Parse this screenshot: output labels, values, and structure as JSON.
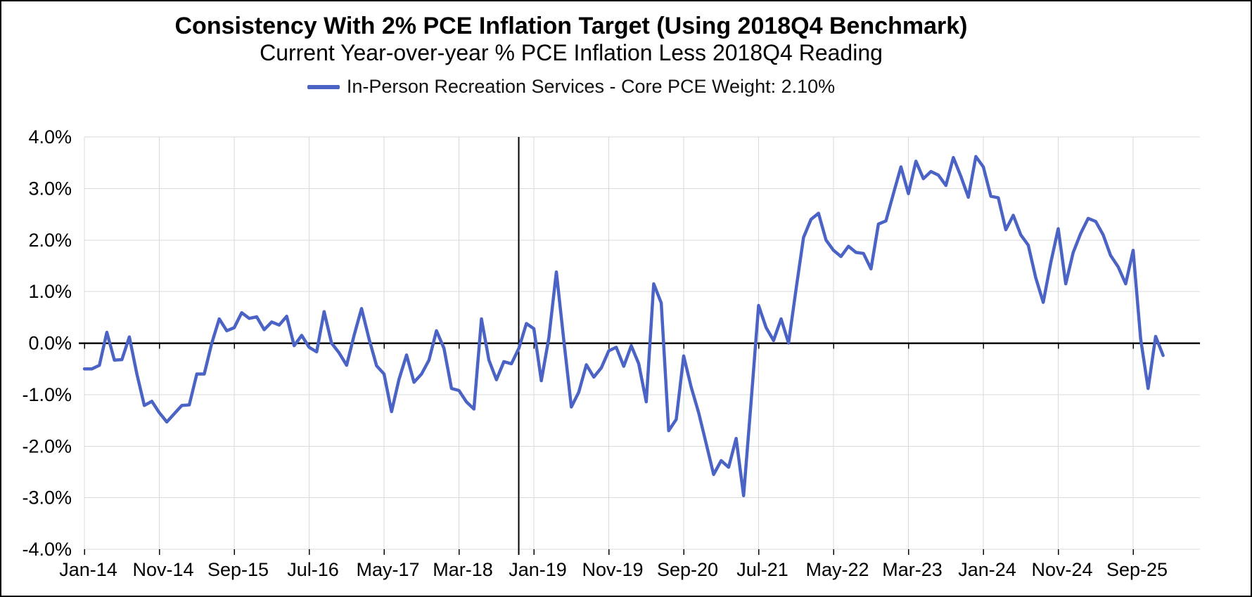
{
  "title": "Consistency With 2% PCE Inflation Target (Using 2018Q4 Benchmark)",
  "subtitle": "Current Year-over-year % PCE Inflation Less 2018Q4 Reading",
  "legend": {
    "label": "In-Person Recreation Services - Core PCE Weight: 2.10%",
    "line_color": "#4A63C4"
  },
  "chart_data": {
    "type": "line",
    "title": "Consistency With 2% PCE Inflation Target (Using 2018Q4 Benchmark)",
    "subtitle": "Current Year-over-year % PCE Inflation Less 2018Q4 Reading",
    "series_name": "In-Person Recreation Services - Core PCE Weight: 2.10%",
    "line_color": "#4A63C4",
    "grid": true,
    "legend_position": "top",
    "ylim": [
      -4.0,
      4.0
    ],
    "ytick_labels": [
      "4.0%",
      "3.0%",
      "2.0%",
      "1.0%",
      "0.0%",
      "-1.0%",
      "-2.0%",
      "-3.0%",
      "-4.0%"
    ],
    "ytick_values": [
      4.0,
      3.0,
      2.0,
      1.0,
      0.0,
      -1.0,
      -2.0,
      -3.0,
      -4.0
    ],
    "xtick_labels": [
      "Jan-14",
      "Nov-14",
      "Sep-15",
      "Jul-16",
      "May-17",
      "Mar-18",
      "Jan-19",
      "Nov-19",
      "Sep-20",
      "Jul-21",
      "May-22",
      "Mar-23",
      "Jan-24",
      "Nov-24",
      "Sep-25"
    ],
    "xtick_interval_months": 10,
    "benchmark_line": {
      "label": "2018Q4 benchmark",
      "month": "Nov-18",
      "index": 58,
      "color": "#000000"
    },
    "x": [
      "Jan-14",
      "Feb-14",
      "Mar-14",
      "Apr-14",
      "May-14",
      "Jun-14",
      "Jul-14",
      "Aug-14",
      "Sep-14",
      "Oct-14",
      "Nov-14",
      "Dec-14",
      "Jan-15",
      "Feb-15",
      "Mar-15",
      "Apr-15",
      "May-15",
      "Jun-15",
      "Jul-15",
      "Aug-15",
      "Sep-15",
      "Oct-15",
      "Nov-15",
      "Dec-15",
      "Jan-16",
      "Feb-16",
      "Mar-16",
      "Apr-16",
      "May-16",
      "Jun-16",
      "Jul-16",
      "Aug-16",
      "Sep-16",
      "Oct-16",
      "Nov-16",
      "Dec-16",
      "Jan-17",
      "Feb-17",
      "Mar-17",
      "Apr-17",
      "May-17",
      "Jun-17",
      "Jul-17",
      "Aug-17",
      "Sep-17",
      "Oct-17",
      "Nov-17",
      "Dec-17",
      "Jan-18",
      "Feb-18",
      "Mar-18",
      "Apr-18",
      "May-18",
      "Jun-18",
      "Jul-18",
      "Aug-18",
      "Sep-18",
      "Oct-18",
      "Nov-18",
      "Dec-18",
      "Jan-19",
      "Feb-19",
      "Mar-19",
      "Apr-19",
      "May-19",
      "Jun-19",
      "Jul-19",
      "Aug-19",
      "Sep-19",
      "Oct-19",
      "Nov-19",
      "Dec-19",
      "Jan-20",
      "Feb-20",
      "Mar-20",
      "Apr-20",
      "May-20",
      "Jun-20",
      "Jul-20",
      "Aug-20",
      "Sep-20",
      "Oct-20",
      "Nov-20",
      "Dec-20",
      "Jan-21",
      "Feb-21",
      "Mar-21",
      "Apr-21",
      "May-21",
      "Jun-21",
      "Jul-21",
      "Aug-21",
      "Sep-21",
      "Oct-21",
      "Nov-21",
      "Dec-21",
      "Jan-22",
      "Feb-22",
      "Mar-22",
      "Apr-22",
      "May-22",
      "Jun-22",
      "Jul-22",
      "Aug-22",
      "Sep-22",
      "Oct-22",
      "Nov-22",
      "Dec-22",
      "Jan-23",
      "Feb-23",
      "Mar-23",
      "Apr-23",
      "May-23",
      "Jun-23",
      "Jul-23",
      "Aug-23",
      "Sep-23",
      "Oct-23",
      "Nov-23",
      "Dec-23",
      "Jan-24",
      "Feb-24",
      "Mar-24",
      "Apr-24",
      "May-24",
      "Jun-24",
      "Jul-24",
      "Aug-24",
      "Sep-24",
      "Oct-24",
      "Nov-24",
      "Dec-24",
      "Jan-25",
      "Feb-25",
      "Mar-25",
      "Apr-25",
      "May-25",
      "Jun-25",
      "Jul-25",
      "Aug-25",
      "Sep-25",
      "Oct-25",
      "Nov-25",
      "Dec-25",
      "Jan-26"
    ],
    "values": [
      -0.5,
      -0.5,
      -0.43,
      0.21,
      -0.33,
      -0.32,
      0.12,
      -0.6,
      -1.21,
      -1.13,
      -1.35,
      -1.53,
      -1.37,
      -1.21,
      -1.2,
      -0.6,
      -0.6,
      0.0,
      0.47,
      0.24,
      0.3,
      0.59,
      0.48,
      0.51,
      0.26,
      0.41,
      0.35,
      0.52,
      -0.05,
      0.15,
      -0.08,
      -0.17,
      0.61,
      0.0,
      -0.19,
      -0.43,
      0.15,
      0.67,
      0.08,
      -0.44,
      -0.6,
      -1.33,
      -0.7,
      -0.23,
      -0.76,
      -0.6,
      -0.33,
      0.24,
      -0.1,
      -0.88,
      -0.92,
      -1.14,
      -1.28,
      0.47,
      -0.33,
      -0.71,
      -0.36,
      -0.4,
      -0.1,
      0.38,
      0.28,
      -0.73,
      0.1,
      1.38,
      0.05,
      -1.24,
      -0.95,
      -0.42,
      -0.66,
      -0.48,
      -0.15,
      -0.08,
      -0.45,
      -0.05,
      -0.4,
      -1.14,
      1.15,
      0.78,
      -1.7,
      -1.48,
      -0.25,
      -0.85,
      -1.35,
      -1.95,
      -2.55,
      -2.28,
      -2.41,
      -1.85,
      -2.96,
      -1.15,
      0.73,
      0.3,
      0.05,
      0.47,
      0.0,
      1.05,
      2.05,
      2.4,
      2.52,
      2.0,
      1.8,
      1.68,
      1.88,
      1.76,
      1.74,
      1.44,
      2.31,
      2.37,
      2.9,
      3.42,
      2.9,
      3.53,
      3.19,
      3.33,
      3.26,
      3.06,
      3.6,
      3.24,
      2.83,
      3.62,
      3.42,
      2.85,
      2.82,
      2.2,
      2.48,
      2.1,
      1.9,
      1.27,
      0.79,
      1.56,
      2.22,
      1.15,
      1.76,
      2.13,
      2.42,
      2.36,
      2.1,
      1.7,
      1.48,
      1.15,
      1.8,
      0.08,
      -0.88,
      0.13,
      -0.24
    ]
  },
  "colors": {
    "gridline": "#D9D9D9",
    "axis": "#000000",
    "text": "#000000"
  }
}
